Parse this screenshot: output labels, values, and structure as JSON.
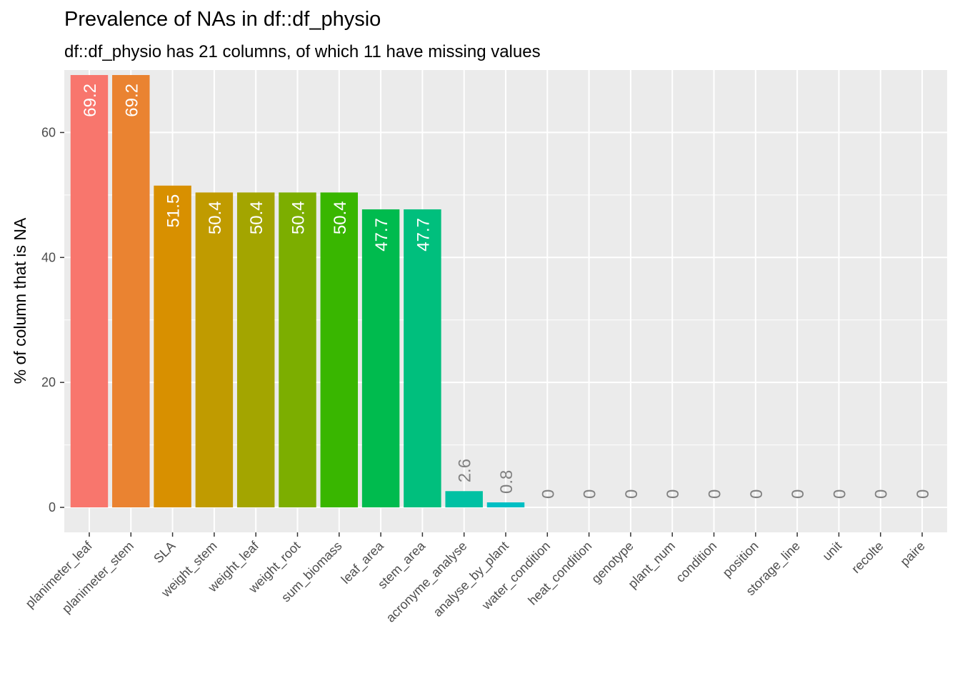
{
  "chart_data": {
    "type": "bar",
    "title": "Prevalence of NAs in df::df_physio",
    "subtitle": "df::df_physio has 21 columns, of which 11 have missing values",
    "xlabel": "",
    "ylabel": "% of column that is NA",
    "ylim": [
      -4,
      70
    ],
    "yticks": [
      0,
      20,
      40,
      60
    ],
    "grid": true,
    "legend": "none",
    "categories": [
      "planimeter_leaf",
      "planimeter_stem",
      "SLA",
      "weight_stem",
      "weight_leaf",
      "weight_root",
      "sum_biomass",
      "leaf_area",
      "stem_area",
      "acronyme_analyse",
      "analyse_by_plant",
      "water_condition",
      "heat_condition",
      "genotype",
      "plant_num",
      "condition",
      "position",
      "storage_line",
      "unit",
      "recolte",
      "paire"
    ],
    "values": [
      69.2,
      69.2,
      51.5,
      50.4,
      50.4,
      50.4,
      50.4,
      47.7,
      47.7,
      2.6,
      0.8,
      0,
      0,
      0,
      0,
      0,
      0,
      0,
      0,
      0,
      0
    ],
    "labels": [
      "69.2",
      "69.2",
      "51.5",
      "50.4",
      "50.4",
      "50.4",
      "50.4",
      "47.7",
      "47.7",
      "2.6",
      "0.8",
      "0",
      "0",
      "0",
      "0",
      "0",
      "0",
      "0",
      "0",
      "0",
      "0"
    ],
    "colors": [
      "#F8766D",
      "#EA8331",
      "#D89000",
      "#C09B00",
      "#A3A500",
      "#7CAE00",
      "#39B600",
      "#00BB4E",
      "#00BF7D",
      "#00C1A3",
      "#00BFC4",
      "#00BAE0",
      "#00B0F6",
      "#35A2FF",
      "#9590FF",
      "#C77CFF",
      "#E76BF3",
      "#FA62DB",
      "#FF62BC",
      "#FF6C91",
      "#F8766D"
    ],
    "label_color_inside": "#ffffff",
    "label_color_outside": "#808080",
    "panel_background": "#EBEBEB",
    "grid_color": "#ffffff"
  }
}
